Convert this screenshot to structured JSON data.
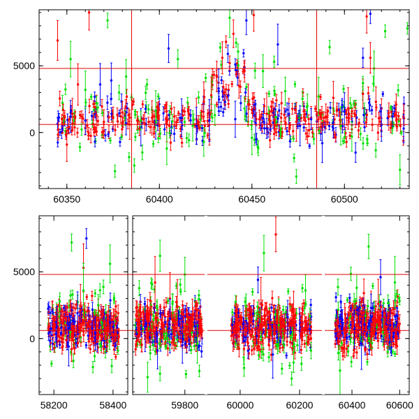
{
  "chart_data": [
    {
      "type": "scatter",
      "title": "",
      "xlabel": "",
      "ylabel": "",
      "xlim": [
        60335,
        60535
      ],
      "ylim": [
        -4200,
        9200
      ],
      "xticks": [
        60350,
        60400,
        60450,
        60500
      ],
      "yticks": [
        0,
        5000
      ],
      "grid": false,
      "hlines": [
        {
          "y": 4800,
          "color": "#e00000"
        },
        {
          "y": 600,
          "color": "#e00000"
        }
      ],
      "vlines": [
        {
          "x": 60385,
          "color": "#e00000"
        },
        {
          "x": 60485,
          "color": "#e00000"
        }
      ],
      "series": [
        {
          "color": "#ff0000",
          "points": [
            [
              60345,
              6900
            ],
            [
              60348,
              1700
            ],
            [
              60350,
              -900
            ],
            [
              60353,
              1400
            ],
            [
              60356,
              3600
            ],
            [
              60358,
              1200
            ],
            [
              60362,
              9000
            ],
            [
              60366,
              1300
            ],
            [
              60370,
              800
            ],
            [
              60375,
              1100
            ],
            [
              60380,
              1500
            ],
            [
              60384,
              600
            ],
            [
              60388,
              900
            ],
            [
              60392,
              700
            ],
            [
              60396,
              1100
            ],
            [
              60400,
              500
            ],
            [
              60404,
              800
            ],
            [
              60408,
              1200
            ],
            [
              60412,
              900
            ],
            [
              60416,
              1400
            ],
            [
              60420,
              1000
            ],
            [
              60424,
              2300
            ],
            [
              60428,
              2800
            ],
            [
              60431,
              4200
            ],
            [
              60434,
              5600
            ],
            [
              60436,
              6800
            ],
            [
              60438,
              5200
            ],
            [
              60440,
              7400
            ],
            [
              60443,
              3500
            ],
            [
              60446,
              4600
            ],
            [
              60448,
              2100
            ],
            [
              60451,
              8800
            ],
            [
              60454,
              1000
            ],
            [
              60458,
              1400
            ],
            [
              60462,
              900
            ],
            [
              60466,
              2200
            ],
            [
              60470,
              1300
            ],
            [
              60474,
              800
            ],
            [
              60478,
              1600
            ],
            [
              60482,
              1100
            ],
            [
              60486,
              1500
            ],
            [
              60490,
              1200
            ],
            [
              60494,
              2600
            ],
            [
              60498,
              900
            ],
            [
              60502,
              1800
            ],
            [
              60506,
              1300
            ],
            [
              60510,
              2900
            ],
            [
              60512,
              8700
            ],
            [
              60514,
              5600
            ],
            [
              60517,
              2300
            ],
            [
              60520,
              1800
            ],
            [
              60524,
              1200
            ],
            [
              60528,
              2100
            ],
            [
              60532,
              1100
            ]
          ]
        },
        {
          "color": "#0000ff",
          "points": [
            [
              60352,
              1200
            ],
            [
              60360,
              900
            ],
            [
              60368,
              3600
            ],
            [
              60374,
              3900
            ],
            [
              60382,
              700
            ],
            [
              60390,
              400
            ],
            [
              60398,
              600
            ],
            [
              60405,
              6300
            ],
            [
              60412,
              1100
            ],
            [
              60420,
              500
            ],
            [
              60427,
              900
            ],
            [
              60432,
              3300
            ],
            [
              60437,
              5900
            ],
            [
              60441,
              1000
            ],
            [
              60444,
              2200
            ],
            [
              60447,
              8400
            ],
            [
              60452,
              700
            ],
            [
              60458,
              300
            ],
            [
              60464,
              6600
            ],
            [
              60470,
              1400
            ],
            [
              60476,
              500
            ],
            [
              60482,
              1000
            ],
            [
              60488,
              -800
            ],
            [
              60494,
              300
            ],
            [
              60500,
              1600
            ],
            [
              60506,
              -1500
            ],
            [
              60510,
              5600
            ],
            [
              60514,
              8900
            ],
            [
              60520,
              600
            ],
            [
              60526,
              1200
            ],
            [
              60532,
              300
            ]
          ]
        },
        {
          "color": "#00e000",
          "points": [
            [
              60352,
              5500
            ],
            [
              60360,
              3200
            ],
            [
              60366,
              2200
            ],
            [
              60372,
              8400
            ],
            [
              60376,
              -2900
            ],
            [
              60382,
              4200
            ],
            [
              60390,
              900
            ],
            [
              60398,
              1600
            ],
            [
              60404,
              -1200
            ],
            [
              60410,
              5500
            ],
            [
              60418,
              500
            ],
            [
              60424,
              -700
            ],
            [
              60430,
              1300
            ],
            [
              60438,
              8600
            ],
            [
              60446,
              1800
            ],
            [
              60450,
              -400
            ],
            [
              60456,
              4600
            ],
            [
              60462,
              5300
            ],
            [
              60468,
              3100
            ],
            [
              60474,
              -3300
            ],
            [
              60480,
              2000
            ],
            [
              60486,
              2700
            ],
            [
              60492,
              6400
            ],
            [
              60498,
              500
            ],
            [
              60504,
              -300
            ],
            [
              60510,
              3700
            ],
            [
              60516,
              4800
            ],
            [
              60522,
              7600
            ],
            [
              60530,
              -2800
            ],
            [
              60534,
              7800
            ]
          ]
        }
      ]
    },
    {
      "type": "scatter",
      "title": "",
      "xlabel": "",
      "ylabel": "",
      "ylim": [
        -4200,
        9200
      ],
      "xticks": [
        58200,
        58400,
        59800,
        60000,
        60200,
        60400,
        60600
      ],
      "yticks": [
        0,
        5000
      ],
      "grid": false,
      "hlines": [
        {
          "y": 4800,
          "color": "#e00000"
        },
        {
          "y": 600,
          "color": "#e00000"
        }
      ],
      "panels": [
        {
          "xlim": [
            58150,
            58450
          ],
          "season_range": [
            58180,
            58420
          ]
        },
        {
          "xlim": [
            59590,
            59885
          ],
          "season_range": [
            59600,
            59870
          ]
        },
        {
          "xlim": [
            59885,
            60280
          ],
          "season_range": [
            59970,
            60240
          ]
        },
        {
          "xlim": [
            60280,
            60640
          ],
          "season_range": [
            60330,
            60600
          ]
        }
      ],
      "series": [
        {
          "color": "#ff0000",
          "points": [
            [
              58200,
              300
            ],
            [
              58230,
              1200
            ],
            [
              58260,
              -800
            ],
            [
              58290,
              2100
            ],
            [
              58300,
              5300
            ],
            [
              58320,
              900
            ],
            [
              58350,
              1600
            ],
            [
              58380,
              700
            ],
            [
              58410,
              1100
            ],
            [
              59620,
              2000
            ],
            [
              59650,
              1400
            ],
            [
              59680,
              4200
            ],
            [
              59710,
              900
            ],
            [
              59740,
              3000
            ],
            [
              59770,
              2400
            ],
            [
              59800,
              500
            ],
            [
              59830,
              1800
            ],
            [
              59860,
              1200
            ],
            [
              59990,
              800
            ],
            [
              60030,
              1500
            ],
            [
              60070,
              2600
            ],
            [
              60100,
              1200
            ],
            [
              60120,
              7800
            ],
            [
              60150,
              900
            ],
            [
              60180,
              1700
            ],
            [
              60210,
              1100
            ],
            [
              60340,
              1300
            ],
            [
              60370,
              600
            ],
            [
              60400,
              1500
            ],
            [
              60430,
              800
            ],
            [
              60450,
              3400
            ],
            [
              60480,
              1900
            ],
            [
              60510,
              2600
            ],
            [
              60540,
              900
            ],
            [
              60570,
              1400
            ],
            [
              60600,
              1100
            ]
          ]
        },
        {
          "color": "#0000ff",
          "points": [
            [
              58210,
              900
            ],
            [
              58250,
              -600
            ],
            [
              58280,
              1900
            ],
            [
              58310,
              7500
            ],
            [
              58340,
              400
            ],
            [
              58390,
              1200
            ],
            [
              59640,
              900
            ],
            [
              59690,
              -900
            ],
            [
              59740,
              1500
            ],
            [
              59790,
              -500
            ],
            [
              59840,
              900
            ],
            [
              60010,
              1100
            ],
            [
              60060,
              4400
            ],
            [
              60110,
              -1200
            ],
            [
              60160,
              1600
            ],
            [
              60200,
              600
            ],
            [
              60360,
              1400
            ],
            [
              60410,
              700
            ],
            [
              60440,
              -400
            ],
            [
              60480,
              2300
            ],
            [
              60520,
              4600
            ],
            [
              60560,
              1000
            ],
            [
              60590,
              1700
            ]
          ]
        },
        {
          "color": "#00e000",
          "points": [
            [
              58220,
              2200
            ],
            [
              58260,
              7200
            ],
            [
              58300,
              3600
            ],
            [
              58350,
              2500
            ],
            [
              58390,
              5600
            ],
            [
              59650,
              -2900
            ],
            [
              59700,
              6200
            ],
            [
              59750,
              2600
            ],
            [
              59800,
              4800
            ],
            [
              59850,
              -400
            ],
            [
              60020,
              2400
            ],
            [
              60080,
              6400
            ],
            [
              60130,
              1000
            ],
            [
              60180,
              -1800
            ],
            [
              60220,
              3600
            ],
            [
              60350,
              -2400
            ],
            [
              60420,
              3800
            ],
            [
              60470,
              6900
            ],
            [
              60530,
              500
            ],
            [
              60580,
              4200
            ]
          ]
        }
      ]
    }
  ]
}
